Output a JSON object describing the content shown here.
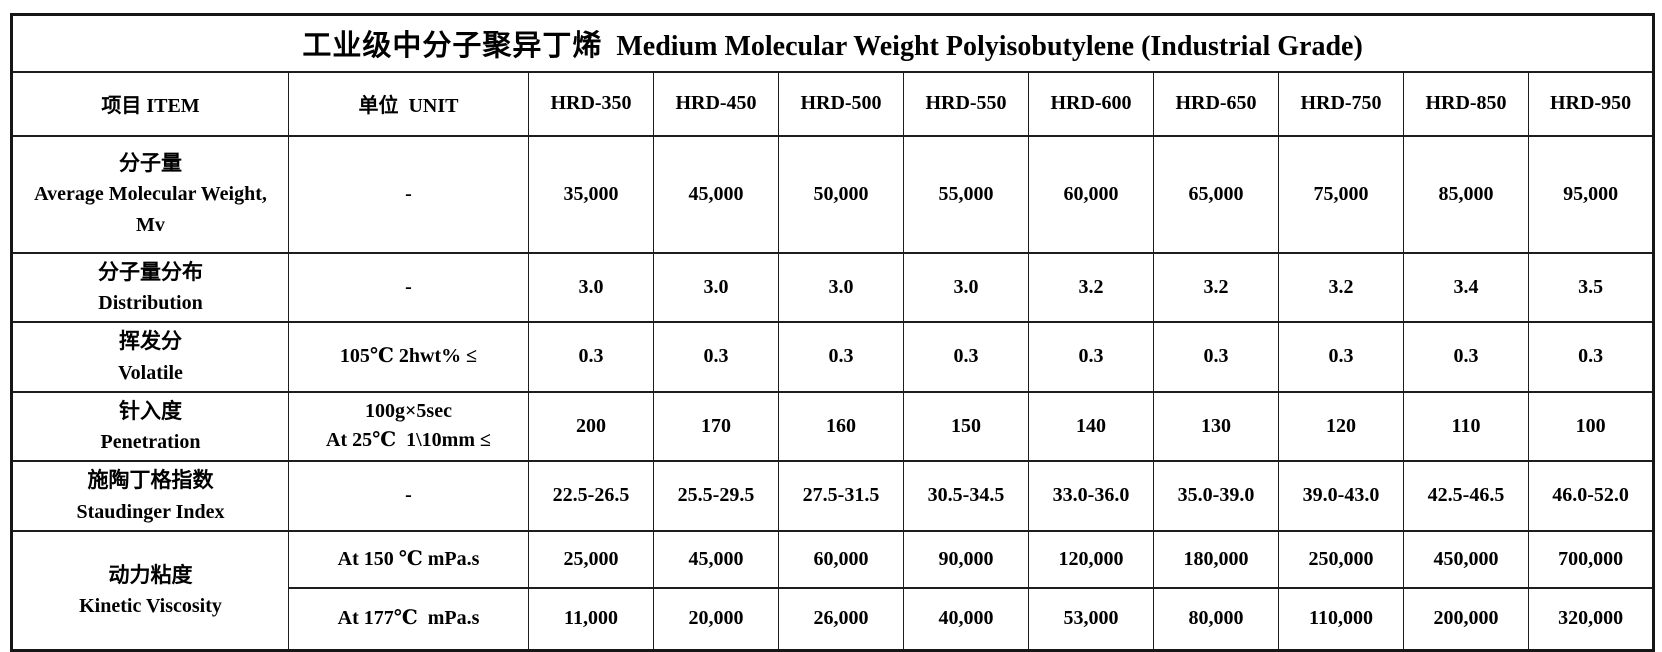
{
  "page_title": {
    "zh": "工业级中分子聚异丁烯",
    "en": "Medium Molecular Weight Polyisobutylene (Industrial Grade)"
  },
  "table": {
    "columns": {
      "item_header": "项目 ITEM",
      "unit_header": "单位  UNIT",
      "grade_headers": [
        "HRD-350",
        "HRD-450",
        "HRD-500",
        "HRD-550",
        "HRD-600",
        "HRD-650",
        "HRD-750",
        "HRD-850",
        "HRD-950"
      ]
    },
    "rows": [
      {
        "id": "average-molecular-weight",
        "item_lines": [
          "分子量",
          "Average Molecular Weight,",
          "Mv"
        ],
        "unit_lines": [
          "-"
        ],
        "values": [
          "35,000",
          "45,000",
          "50,000",
          "55,000",
          "60,000",
          "65,000",
          "75,000",
          "85,000",
          "95,000"
        ]
      },
      {
        "id": "distribution",
        "item_lines": [
          "分子量分布",
          "Distribution"
        ],
        "unit_lines": [
          "-"
        ],
        "values": [
          "3.0",
          "3.0",
          "3.0",
          "3.0",
          "3.2",
          "3.2",
          "3.2",
          "3.4",
          "3.5"
        ]
      },
      {
        "id": "volatile",
        "item_lines": [
          "挥发分",
          "Volatile"
        ],
        "unit_lines": [
          "105℃ 2hwt% ≤"
        ],
        "values": [
          "0.3",
          "0.3",
          "0.3",
          "0.3",
          "0.3",
          "0.3",
          "0.3",
          "0.3",
          "0.3"
        ]
      },
      {
        "id": "penetration",
        "item_lines": [
          "针入度",
          "Penetration"
        ],
        "unit_lines": [
          "100g×5sec",
          "At 25℃  1\\10mm ≤"
        ],
        "values": [
          "200",
          "170",
          "160",
          "150",
          "140",
          "130",
          "120",
          "110",
          "100"
        ]
      },
      {
        "id": "staudinger-index",
        "item_lines": [
          "施陶丁格指数",
          "Staudinger Index"
        ],
        "unit_lines": [
          "-"
        ],
        "values": [
          "22.5-26.5",
          "25.5-29.5",
          "27.5-31.5",
          "30.5-34.5",
          "33.0-36.0",
          "35.0-39.0",
          "39.0-43.0",
          "42.5-46.5",
          "46.0-52.0"
        ]
      },
      {
        "id": "kinetic-viscosity-150",
        "item_lines": [
          "动力粘度",
          "Kinetic Viscosity"
        ],
        "item_rowspan": 2,
        "unit_lines": [
          "At 150 ℃ mPa.s"
        ],
        "values": [
          "25,000",
          "45,000",
          "60,000",
          "90,000",
          "120,000",
          "180,000",
          "250,000",
          "450,000",
          "700,000"
        ]
      },
      {
        "id": "kinetic-viscosity-177",
        "item_lines": null,
        "unit_lines": [
          "At 177℃  mPa.s"
        ],
        "values": [
          "11,000",
          "20,000",
          "26,000",
          "40,000",
          "53,000",
          "80,000",
          "110,000",
          "200,000",
          "320,000"
        ]
      }
    ]
  }
}
